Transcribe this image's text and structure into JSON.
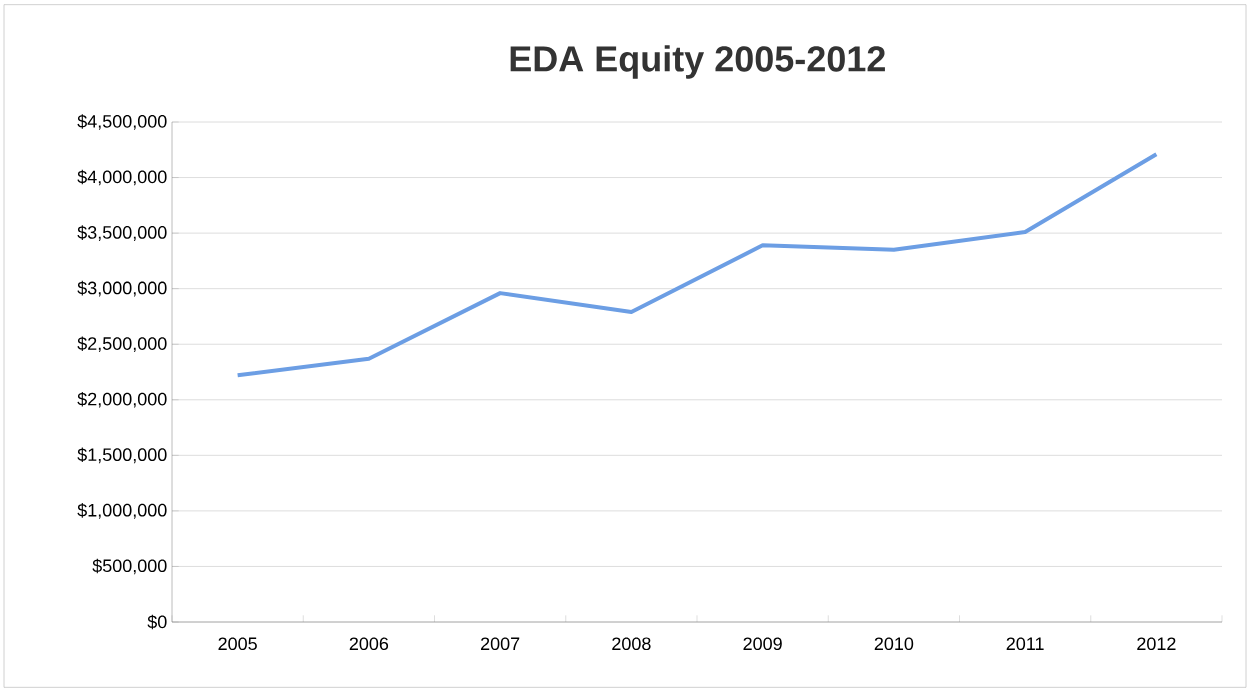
{
  "chart_data": {
    "type": "line",
    "title": "EDA Equity 2005-2012",
    "categories": [
      "2005",
      "2006",
      "2007",
      "2008",
      "2009",
      "2010",
      "2011",
      "2012"
    ],
    "values": [
      2220000,
      2370000,
      2960000,
      2790000,
      3390000,
      3350000,
      3510000,
      4210000
    ],
    "color": "#6c9ee4",
    "ylim": [
      0,
      4500000
    ],
    "yticks": [
      {
        "value": 0,
        "label": "$0"
      },
      {
        "value": 500000,
        "label": "$500,000"
      },
      {
        "value": 1000000,
        "label": "$1,000,000"
      },
      {
        "value": 1500000,
        "label": "$1,500,000"
      },
      {
        "value": 2000000,
        "label": "$2,000,000"
      },
      {
        "value": 2500000,
        "label": "$2,500,000"
      },
      {
        "value": 3000000,
        "label": "$3,000,000"
      },
      {
        "value": 3500000,
        "label": "$3,500,000"
      },
      {
        "value": 4000000,
        "label": "$4,000,000"
      },
      {
        "value": 4500000,
        "label": "$4,500,000"
      }
    ],
    "grid": "y",
    "marker": "none",
    "line_style": "solid"
  }
}
